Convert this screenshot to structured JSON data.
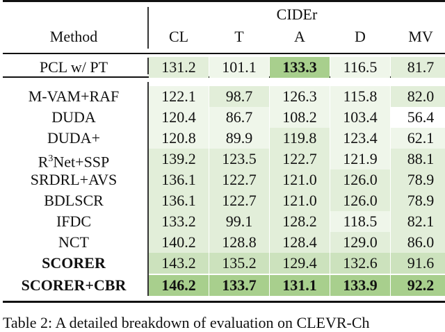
{
  "header": {
    "group_label": "CIDEr",
    "method_label": "Method",
    "columns": [
      "CL",
      "T",
      "A",
      "D",
      "MV"
    ]
  },
  "shade_colors": [
    "#ffffff",
    "#eff6ea",
    "#e2eed9",
    "#cce2bd",
    "#a8cf8d"
  ],
  "rows": [
    {
      "method": "PCL w/ PT",
      "bold": false,
      "values": [
        "131.2",
        "101.1",
        "133.3",
        "116.5",
        "81.7"
      ],
      "bold_cells": [
        false,
        false,
        true,
        false,
        false
      ],
      "shade": [
        2,
        1,
        4,
        1,
        2
      ]
    },
    {
      "method": "M-VAM+RAF",
      "bold": false,
      "values": [
        "122.1",
        "98.7",
        "126.3",
        "115.8",
        "82.0"
      ],
      "bold_cells": [
        false,
        false,
        false,
        false,
        false
      ],
      "shade": [
        1,
        2,
        1,
        1,
        2
      ]
    },
    {
      "method": "DUDA",
      "bold": false,
      "values": [
        "120.4",
        "86.7",
        "108.2",
        "103.4",
        "56.4"
      ],
      "bold_cells": [
        false,
        false,
        false,
        false,
        false
      ],
      "shade": [
        1,
        1,
        1,
        1,
        0
      ]
    },
    {
      "method": "DUDA+",
      "bold": false,
      "values": [
        "120.8",
        "89.9",
        "119.8",
        "123.4",
        "62.1"
      ],
      "bold_cells": [
        false,
        false,
        false,
        false,
        false
      ],
      "shade": [
        1,
        1,
        2,
        1,
        1
      ]
    },
    {
      "method": "R",
      "method_sup": "3",
      "method_rest": "Net+SSP",
      "bold": false,
      "values": [
        "139.2",
        "123.5",
        "122.7",
        "121.9",
        "88.1"
      ],
      "bold_cells": [
        false,
        false,
        false,
        false,
        false
      ],
      "shade": [
        2,
        2,
        2,
        1,
        2
      ]
    },
    {
      "method": "SRDRL+AVS",
      "bold": false,
      "values": [
        "136.1",
        "122.7",
        "121.0",
        "126.0",
        "78.9"
      ],
      "bold_cells": [
        false,
        false,
        false,
        false,
        false
      ],
      "shade": [
        2,
        2,
        2,
        2,
        2
      ]
    },
    {
      "method": "BDLSCR",
      "bold": false,
      "values": [
        "136.1",
        "122.7",
        "121.0",
        "126.0",
        "78.9"
      ],
      "bold_cells": [
        false,
        false,
        false,
        false,
        false
      ],
      "shade": [
        2,
        2,
        2,
        2,
        2
      ]
    },
    {
      "method": "IFDC",
      "bold": false,
      "values": [
        "133.2",
        "99.1",
        "128.2",
        "118.5",
        "82.1"
      ],
      "bold_cells": [
        false,
        false,
        false,
        false,
        false
      ],
      "shade": [
        2,
        2,
        2,
        1,
        2
      ]
    },
    {
      "method": "NCT",
      "bold": false,
      "values": [
        "140.2",
        "128.8",
        "128.4",
        "129.0",
        "86.0"
      ],
      "bold_cells": [
        false,
        false,
        false,
        false,
        false
      ],
      "shade": [
        2,
        2,
        2,
        2,
        2
      ]
    },
    {
      "method": "SCORER",
      "bold": true,
      "values": [
        "143.2",
        "135.2",
        "129.4",
        "132.6",
        "91.6"
      ],
      "bold_cells": [
        false,
        false,
        false,
        false,
        false
      ],
      "shade": [
        3,
        3,
        3,
        3,
        3
      ]
    },
    {
      "method": "SCORER+CBR",
      "bold": true,
      "values": [
        "146.2",
        "133.7",
        "131.1",
        "133.9",
        "92.2"
      ],
      "bold_cells": [
        true,
        true,
        true,
        true,
        true
      ],
      "shade": [
        4,
        4,
        4,
        4,
        4
      ]
    }
  ],
  "caption": "Table 2: A detailed breakdown of evaluation on CLEVR-Ch"
}
